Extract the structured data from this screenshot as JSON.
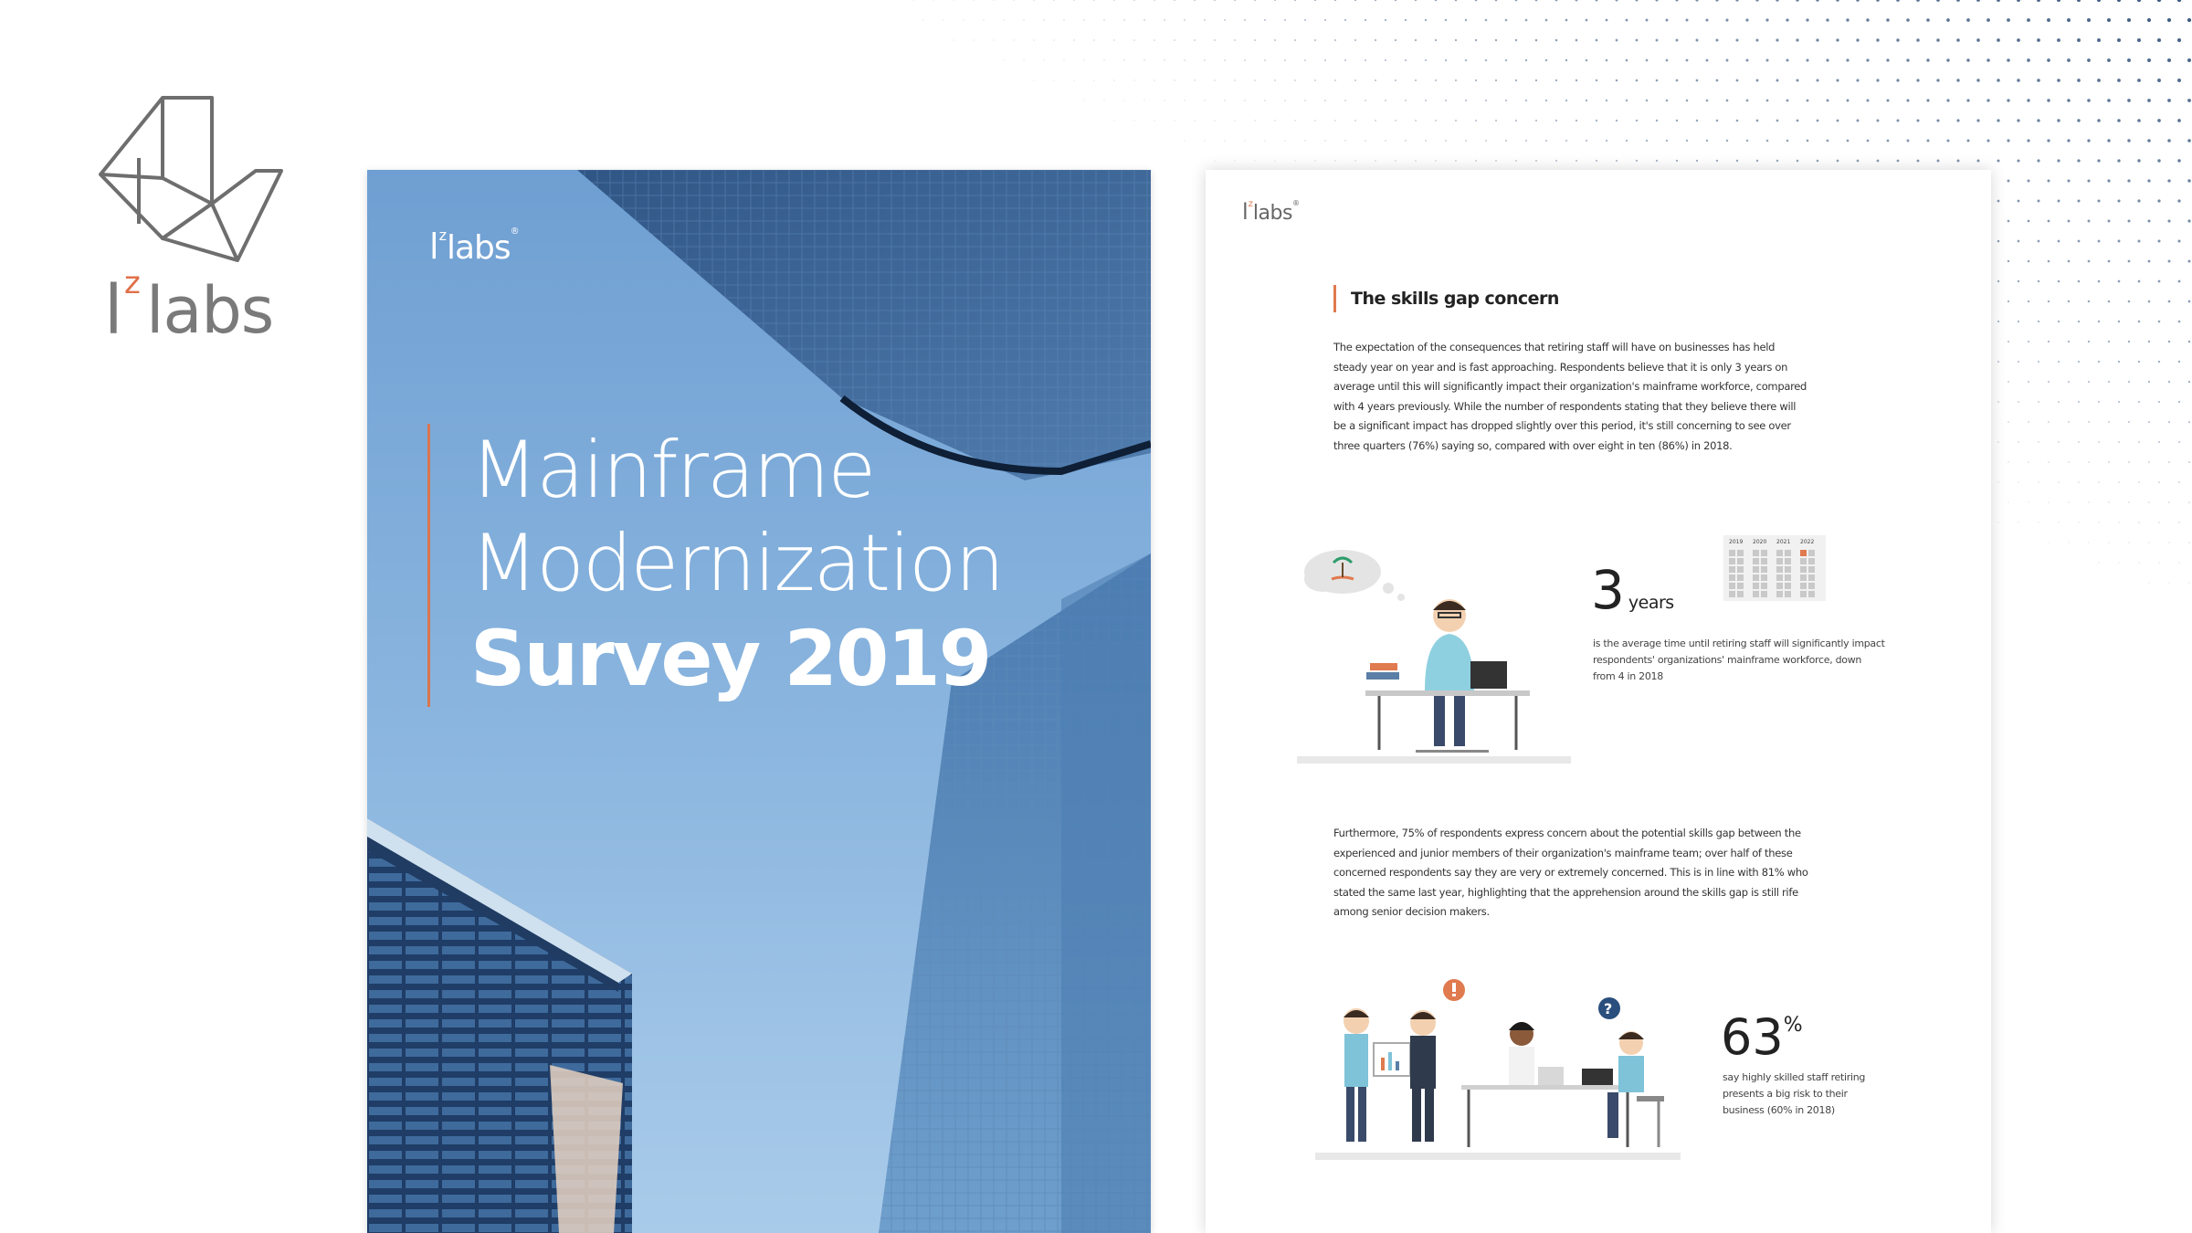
{
  "brand": {
    "logo_l": "l",
    "logo_z": "z",
    "logo_labs": "labs"
  },
  "colors": {
    "accent": "#e07a4f",
    "text": "#333333",
    "sky": "#7fabd9",
    "logo_grey": "#7a7a7a"
  },
  "cover": {
    "logo_l": "l",
    "logo_z": "z",
    "logo_labs": "labs",
    "logo_r": "®",
    "title_line1": "Mainframe",
    "title_line2": "Modernization",
    "title_line3": "Survey 2019"
  },
  "page": {
    "logo_l": "l",
    "logo_z": "z",
    "logo_labs": "labs",
    "logo_r": "®",
    "heading": "The skills gap concern",
    "para1": "The expectation of the consequences that retiring staff will have on businesses has held steady year on year and is fast approaching. Respondents believe that it is only 3 years on average until this will significantly impact their organization's mainframe workforce, compared with 4 years previously. While the number of respondents stating that they believe there will be a significant impact has dropped slightly over this period, it's still concerning to see over three quarters (76%) saying so, compared with over eight in ten (86%) in 2018.",
    "stat1_value": "3",
    "stat1_unit": "years",
    "stat1_desc": "is the average time until retiring staff will significantly impact respondents' organizations' mainframe workforce, down from 4 in 2018",
    "calendar_years": [
      "2019",
      "2020",
      "2021",
      "2022"
    ],
    "para2": "Furthermore, 75% of respondents express concern about the potential skills gap between the experienced and junior members of their organization's mainframe team; over half of these concerned respondents say they are very or extremely concerned. This is in line with 81% who stated the same last year, highlighting that the apprehension around the skills gap is still rife among senior decision makers.",
    "stat2_value": "63",
    "stat2_unit": "%",
    "stat2_desc": "say highly skilled staff retiring presents a big risk to their business (60% in 2018)"
  }
}
